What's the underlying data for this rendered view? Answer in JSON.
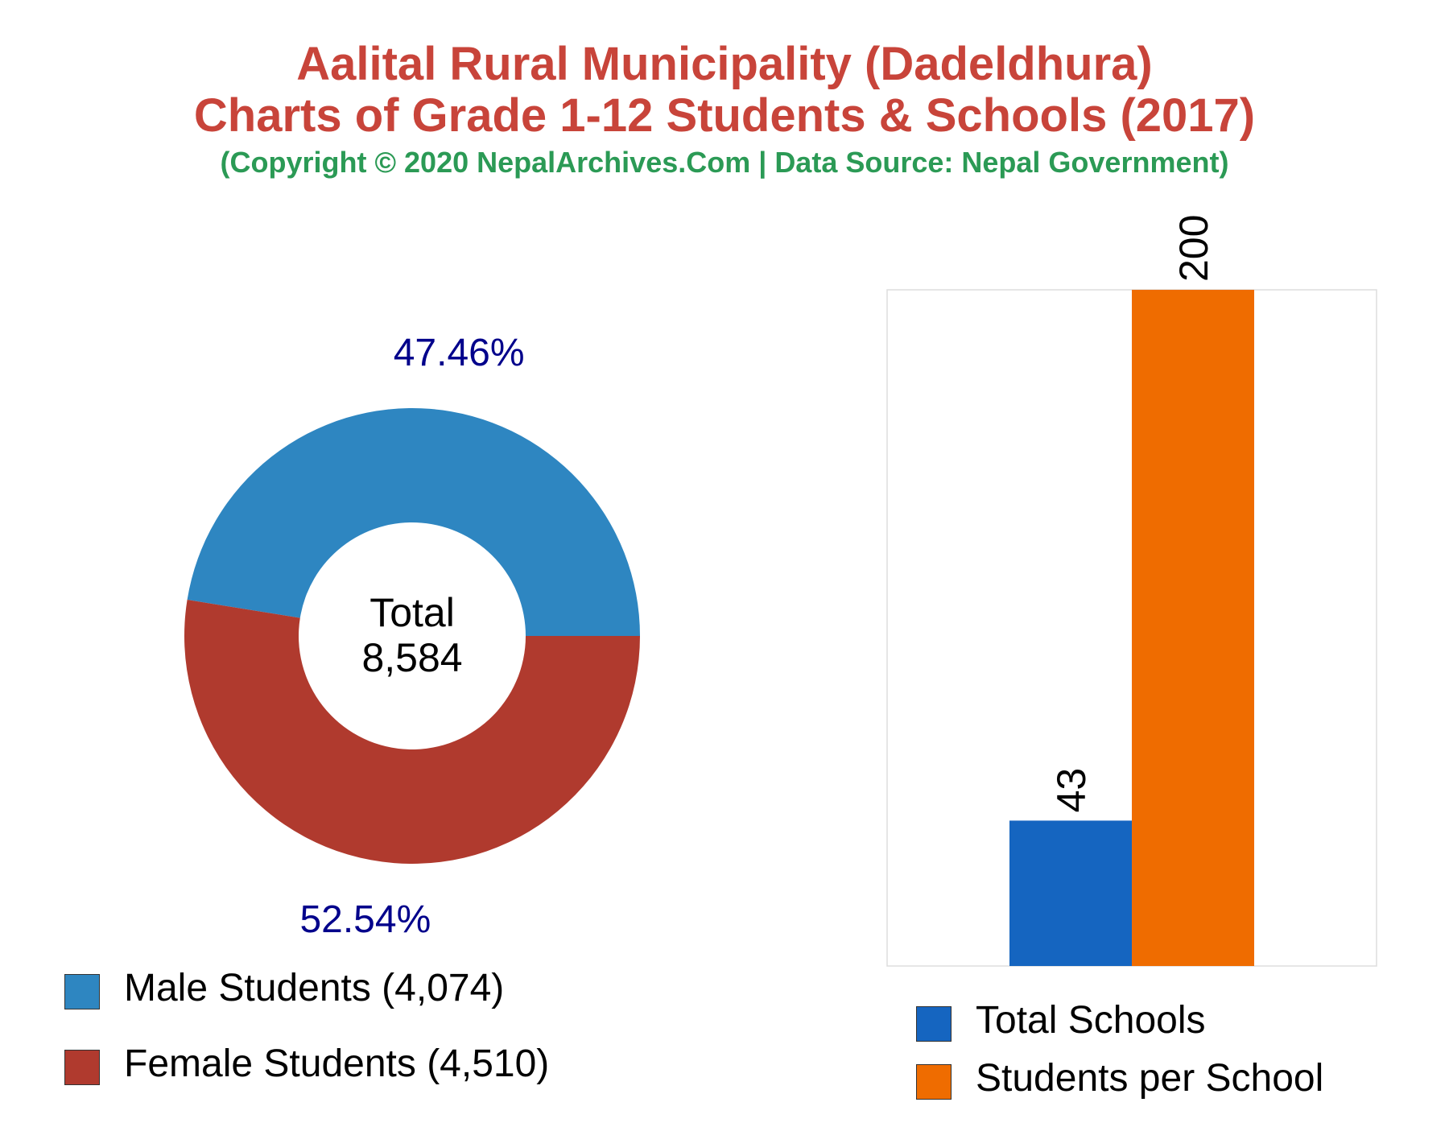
{
  "header": {
    "title_line1": "Aalital Rural Municipality (Dadeldhura)",
    "title_line2": "Charts of Grade 1-12 Students & Schools (2017)",
    "subtitle": "(Copyright © 2020 NepalArchives.Com | Data Source: Nepal Government)"
  },
  "chart_data": [
    {
      "type": "pie",
      "title": "",
      "center_label": "Total",
      "center_value": "8,584",
      "slices": [
        {
          "name": "Male Students (4,074)",
          "value": 4074,
          "percent_label": "47.46%",
          "color": "#2e86c1"
        },
        {
          "name": "Female Students (4,510)",
          "value": 4510,
          "percent_label": "52.54%",
          "color": "#b03a2e"
        }
      ],
      "label_color": "#00008b",
      "legend_position": "bottom"
    },
    {
      "type": "bar",
      "title": "",
      "categories": [
        "Total Schools",
        "Students per School"
      ],
      "values": [
        43,
        200
      ],
      "value_labels": [
        "43",
        "200"
      ],
      "colors": [
        "#1565c0",
        "#ef6c00"
      ],
      "ylim": [
        0,
        200
      ],
      "grid": false,
      "legend_position": "bottom"
    }
  ]
}
